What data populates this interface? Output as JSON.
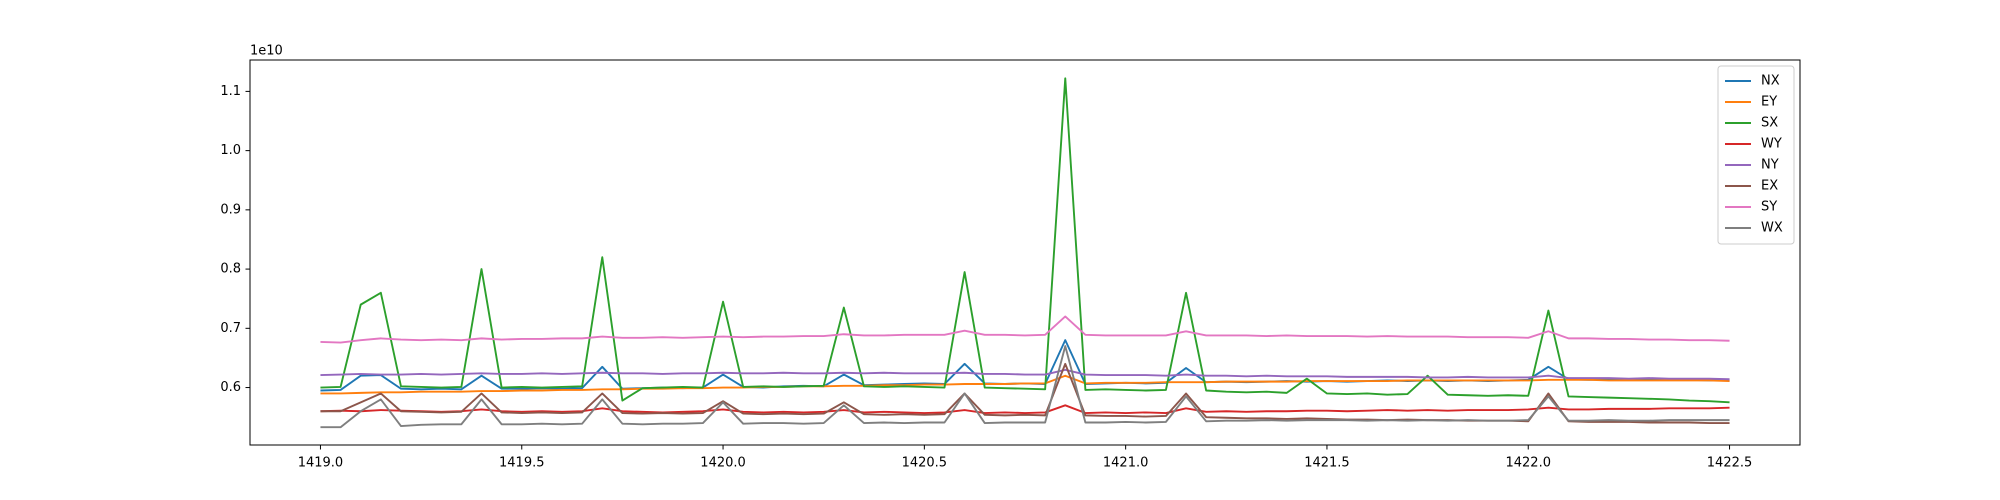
{
  "chart_data": {
    "type": "line",
    "y_offset_label": "1e10",
    "x": [
      1419,
      1419.05,
      1419.1,
      1419.15,
      1419.2,
      1419.25,
      1419.3,
      1419.35,
      1419.4,
      1419.45,
      1419.5,
      1419.55,
      1419.6,
      1419.65,
      1419.7,
      1419.75,
      1419.8,
      1419.85,
      1419.9,
      1419.95,
      1420,
      1420.05,
      1420.1,
      1420.15,
      1420.2,
      1420.25,
      1420.3,
      1420.35,
      1420.4,
      1420.45,
      1420.5,
      1420.55,
      1420.6,
      1420.65,
      1420.7,
      1420.75,
      1420.8,
      1420.85,
      1420.9,
      1420.95,
      1421,
      1421.05,
      1421.1,
      1421.15,
      1421.2,
      1421.25,
      1421.3,
      1421.35,
      1421.4,
      1421.45,
      1421.5,
      1421.55,
      1421.6,
      1421.65,
      1421.7,
      1421.75,
      1421.8,
      1421.85,
      1421.9,
      1421.95,
      1422,
      1422.05,
      1422.1,
      1422.15,
      1422.2,
      1422.25,
      1422.3,
      1422.35,
      1422.4,
      1422.45,
      1422.5
    ],
    "series": [
      {
        "name": "NX",
        "color": "#1f77b4",
        "values": [
          0.595,
          0.596,
          0.62,
          0.621,
          0.598,
          0.597,
          0.598,
          0.597,
          0.62,
          0.598,
          0.598,
          0.599,
          0.598,
          0.599,
          0.635,
          0.598,
          0.599,
          0.6,
          0.599,
          0.6,
          0.622,
          0.601,
          0.6,
          0.602,
          0.603,
          0.602,
          0.622,
          0.604,
          0.605,
          0.606,
          0.607,
          0.606,
          0.64,
          0.607,
          0.606,
          0.607,
          0.606,
          0.68,
          0.606,
          0.607,
          0.608,
          0.607,
          0.608,
          0.633,
          0.609,
          0.61,
          0.609,
          0.61,
          0.611,
          0.61,
          0.611,
          0.61,
          0.611,
          0.612,
          0.611,
          0.612,
          0.611,
          0.612,
          0.611,
          0.612,
          0.613,
          0.635,
          0.614,
          0.613,
          0.614,
          0.613,
          0.614,
          0.613,
          0.613,
          0.612,
          0.612
        ]
      },
      {
        "name": "EY",
        "color": "#ff7f0e",
        "values": [
          0.59,
          0.59,
          0.591,
          0.592,
          0.592,
          0.593,
          0.593,
          0.593,
          0.594,
          0.594,
          0.595,
          0.595,
          0.596,
          0.596,
          0.597,
          0.597,
          0.598,
          0.598,
          0.599,
          0.599,
          0.6,
          0.6,
          0.601,
          0.601,
          0.602,
          0.602,
          0.603,
          0.603,
          0.604,
          0.604,
          0.605,
          0.605,
          0.606,
          0.606,
          0.606,
          0.607,
          0.607,
          0.62,
          0.607,
          0.608,
          0.608,
          0.608,
          0.609,
          0.609,
          0.609,
          0.61,
          0.61,
          0.61,
          0.61,
          0.611,
          0.611,
          0.611,
          0.611,
          0.611,
          0.612,
          0.612,
          0.612,
          0.612,
          0.612,
          0.612,
          0.612,
          0.613,
          0.613,
          0.613,
          0.612,
          0.612,
          0.612,
          0.612,
          0.612,
          0.612,
          0.611
        ]
      },
      {
        "name": "SX",
        "color": "#2ca02c",
        "values": [
          0.6,
          0.601,
          0.74,
          0.76,
          0.602,
          0.601,
          0.6,
          0.601,
          0.8,
          0.6,
          0.601,
          0.6,
          0.601,
          0.602,
          0.82,
          0.578,
          0.599,
          0.6,
          0.601,
          0.6,
          0.745,
          0.601,
          0.602,
          0.601,
          0.602,
          0.603,
          0.735,
          0.602,
          0.601,
          0.602,
          0.601,
          0.6,
          0.795,
          0.6,
          0.599,
          0.598,
          0.597,
          1.122,
          0.596,
          0.597,
          0.596,
          0.595,
          0.596,
          0.76,
          0.595,
          0.593,
          0.592,
          0.593,
          0.591,
          0.615,
          0.59,
          0.589,
          0.59,
          0.588,
          0.589,
          0.62,
          0.588,
          0.587,
          0.586,
          0.587,
          0.586,
          0.73,
          0.585,
          0.584,
          0.583,
          0.582,
          0.581,
          0.58,
          0.578,
          0.577,
          0.575
        ]
      },
      {
        "name": "WY",
        "color": "#d62728",
        "values": [
          0.56,
          0.561,
          0.56,
          0.562,
          0.561,
          0.56,
          0.559,
          0.56,
          0.563,
          0.56,
          0.559,
          0.56,
          0.559,
          0.56,
          0.565,
          0.56,
          0.559,
          0.558,
          0.559,
          0.56,
          0.563,
          0.559,
          0.558,
          0.559,
          0.558,
          0.559,
          0.562,
          0.558,
          0.559,
          0.558,
          0.557,
          0.558,
          0.562,
          0.557,
          0.558,
          0.557,
          0.558,
          0.57,
          0.557,
          0.558,
          0.557,
          0.558,
          0.557,
          0.565,
          0.559,
          0.56,
          0.559,
          0.56,
          0.56,
          0.561,
          0.561,
          0.56,
          0.561,
          0.562,
          0.561,
          0.562,
          0.561,
          0.562,
          0.562,
          0.562,
          0.563,
          0.566,
          0.563,
          0.563,
          0.564,
          0.564,
          0.564,
          0.565,
          0.565,
          0.565,
          0.566
        ]
      },
      {
        "name": "NY",
        "color": "#9467bd",
        "values": [
          0.621,
          0.622,
          0.623,
          0.622,
          0.622,
          0.623,
          0.622,
          0.623,
          0.624,
          0.623,
          0.623,
          0.624,
          0.623,
          0.624,
          0.625,
          0.624,
          0.624,
          0.623,
          0.624,
          0.624,
          0.625,
          0.624,
          0.624,
          0.625,
          0.624,
          0.624,
          0.625,
          0.624,
          0.625,
          0.624,
          0.624,
          0.624,
          0.625,
          0.623,
          0.623,
          0.622,
          0.622,
          0.63,
          0.622,
          0.621,
          0.621,
          0.621,
          0.62,
          0.622,
          0.62,
          0.62,
          0.619,
          0.62,
          0.619,
          0.619,
          0.619,
          0.618,
          0.618,
          0.618,
          0.618,
          0.617,
          0.617,
          0.618,
          0.617,
          0.617,
          0.617,
          0.62,
          0.616,
          0.616,
          0.616,
          0.615,
          0.616,
          0.615,
          0.615,
          0.615,
          0.614
        ]
      },
      {
        "name": "EX",
        "color": "#8c564b",
        "values": [
          0.56,
          0.56,
          0.575,
          0.59,
          0.56,
          0.559,
          0.558,
          0.559,
          0.59,
          0.558,
          0.557,
          0.558,
          0.557,
          0.558,
          0.59,
          0.557,
          0.556,
          0.557,
          0.556,
          0.557,
          0.577,
          0.556,
          0.555,
          0.556,
          0.555,
          0.556,
          0.575,
          0.555,
          0.554,
          0.555,
          0.554,
          0.555,
          0.59,
          0.554,
          0.553,
          0.554,
          0.553,
          0.64,
          0.553,
          0.552,
          0.552,
          0.551,
          0.552,
          0.59,
          0.55,
          0.549,
          0.548,
          0.548,
          0.547,
          0.548,
          0.547,
          0.546,
          0.546,
          0.545,
          0.546,
          0.545,
          0.545,
          0.544,
          0.544,
          0.544,
          0.543,
          0.59,
          0.543,
          0.542,
          0.542,
          0.542,
          0.541,
          0.541,
          0.541,
          0.54,
          0.54
        ]
      },
      {
        "name": "SY",
        "color": "#e377c2",
        "values": [
          0.677,
          0.676,
          0.68,
          0.683,
          0.681,
          0.68,
          0.681,
          0.68,
          0.683,
          0.681,
          0.682,
          0.682,
          0.683,
          0.683,
          0.686,
          0.684,
          0.684,
          0.685,
          0.684,
          0.685,
          0.686,
          0.685,
          0.686,
          0.686,
          0.687,
          0.687,
          0.69,
          0.688,
          0.688,
          0.689,
          0.689,
          0.689,
          0.696,
          0.689,
          0.689,
          0.688,
          0.689,
          0.72,
          0.689,
          0.688,
          0.688,
          0.688,
          0.688,
          0.695,
          0.688,
          0.688,
          0.688,
          0.687,
          0.688,
          0.687,
          0.687,
          0.687,
          0.686,
          0.687,
          0.686,
          0.686,
          0.686,
          0.685,
          0.685,
          0.685,
          0.684,
          0.695,
          0.683,
          0.683,
          0.682,
          0.682,
          0.681,
          0.681,
          0.68,
          0.68,
          0.679
        ]
      },
      {
        "name": "WX",
        "color": "#7f7f7f",
        "values": [
          0.533,
          0.533,
          0.56,
          0.58,
          0.535,
          0.537,
          0.538,
          0.538,
          0.58,
          0.538,
          0.538,
          0.539,
          0.538,
          0.539,
          0.58,
          0.539,
          0.538,
          0.539,
          0.539,
          0.54,
          0.575,
          0.539,
          0.54,
          0.54,
          0.539,
          0.54,
          0.57,
          0.54,
          0.541,
          0.54,
          0.541,
          0.541,
          0.59,
          0.54,
          0.541,
          0.541,
          0.541,
          0.67,
          0.541,
          0.541,
          0.542,
          0.541,
          0.542,
          0.585,
          0.543,
          0.544,
          0.544,
          0.545,
          0.544,
          0.545,
          0.545,
          0.545,
          0.544,
          0.545,
          0.544,
          0.545,
          0.544,
          0.545,
          0.544,
          0.544,
          0.545,
          0.585,
          0.544,
          0.544,
          0.545,
          0.544,
          0.544,
          0.545,
          0.545,
          0.545,
          0.545
        ]
      }
    ],
    "xlim": [
      1418.825,
      1422.675
    ],
    "ylim": [
      0.503,
      1.153
    ],
    "xticks": [
      {
        "value": 1419,
        "label": "1419.0"
      },
      1419.5,
      {
        "value": 1420,
        "label": "1420.0"
      },
      1420.5,
      {
        "value": 1421,
        "label": "1421.0"
      },
      1421.5,
      {
        "value": 1422,
        "label": "1422.0"
      },
      1422.5
    ],
    "yticks": [
      0.6,
      0.7,
      0.8,
      0.9,
      {
        "value": 1,
        "label": "1.0"
      },
      1.1
    ],
    "grid": false,
    "legend": "upper right"
  }
}
